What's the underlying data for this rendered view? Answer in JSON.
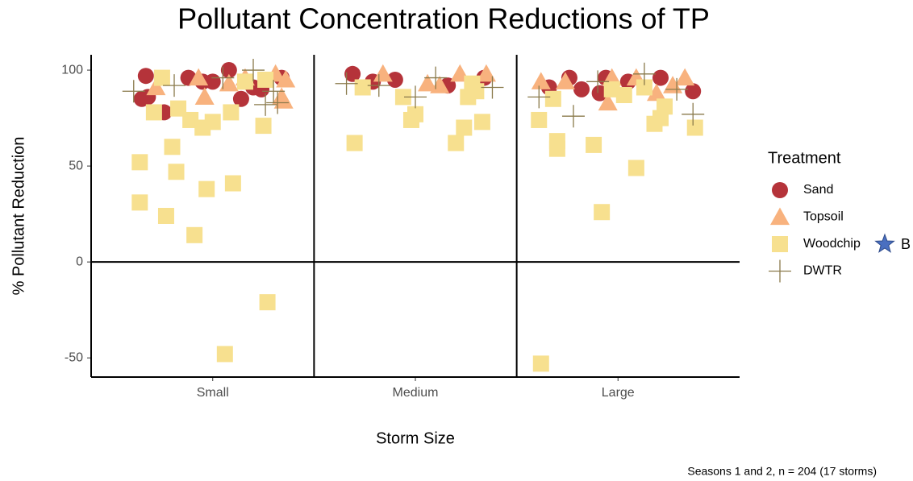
{
  "chart_data": {
    "type": "scatter",
    "title": "Pollutant Concentration Reductions of TP",
    "x_label": "Storm Size",
    "y_label": "% Pollutant Reduction",
    "legend_title": "Treatment",
    "annotation": "B",
    "annotation_color": "#4a6fc0",
    "caption": "Seasons 1 and 2, n = 204 (17 storms)",
    "xlim": [
      0.4,
      3.6
    ],
    "xticks": [
      {
        "value": 1,
        "label": "Small"
      },
      {
        "value": 2,
        "label": "Medium"
      },
      {
        "value": 3,
        "label": "Large"
      }
    ],
    "vlines": [
      1.5,
      2.5
    ],
    "hline": 0,
    "ylim": [
      -60,
      108
    ],
    "yticks": [
      -50,
      0,
      50,
      100
    ],
    "legend_position": "right",
    "series": [
      {
        "name": "Sand",
        "color": "#b5333a",
        "marker": "circle",
        "x": [
          0.67,
          0.65,
          0.68,
          0.76,
          0.88,
          0.95,
          1.08,
          1.14,
          1.2,
          1.24,
          1.34,
          1.0,
          1.69,
          1.79,
          1.9,
          2.16,
          2.34,
          2.66,
          2.76,
          2.82,
          2.91,
          2.94,
          3.05,
          3.21,
          3.37
        ],
        "values": [
          97,
          85,
          86,
          78,
          96,
          94,
          100,
          85,
          91,
          90,
          96,
          94,
          98,
          94,
          95,
          92,
          96,
          91,
          96,
          90,
          88,
          96,
          94,
          96,
          89
        ]
      },
      {
        "name": "Topsoil",
        "color": "#f8b27e",
        "marker": "triangle",
        "x": [
          0.72,
          0.93,
          0.96,
          1.08,
          1.16,
          1.31,
          1.36,
          1.34,
          1.35,
          1.84,
          2.06,
          2.12,
          2.22,
          2.35,
          2.62,
          2.74,
          2.95,
          2.97,
          3.09,
          3.19,
          3.33,
          3.27
        ],
        "values": [
          91,
          96,
          86,
          93,
          96,
          98,
          95,
          86,
          84,
          98,
          93,
          92,
          98,
          98,
          94,
          94,
          83,
          96,
          96,
          88,
          96,
          92
        ]
      },
      {
        "name": "Woodchip",
        "color": "#f7e08f",
        "marker": "square",
        "x": [
          0.64,
          0.64,
          0.77,
          0.8,
          0.82,
          0.91,
          0.97,
          1.1,
          1.06,
          1.27,
          1.25,
          0.71,
          0.89,
          0.95,
          1.0,
          1.09,
          0.83,
          0.75,
          1.26,
          1.16,
          1.7,
          1.74,
          1.94,
          1.98,
          2.0,
          2.2,
          2.24,
          2.33,
          2.26,
          2.28,
          2.3,
          2.62,
          2.61,
          2.68,
          2.7,
          2.7,
          2.88,
          2.92,
          3.09,
          3.18,
          3.21,
          3.23,
          3.38,
          2.97,
          3.03,
          3.13
        ],
        "values": [
          52,
          31,
          24,
          60,
          47,
          14,
          38,
          41,
          -48,
          -21,
          71,
          78,
          74,
          70,
          73,
          78,
          80,
          96,
          95,
          94,
          62,
          91,
          86,
          74,
          77,
          62,
          70,
          73,
          86,
          93,
          89,
          -53,
          74,
          85,
          63,
          59,
          61,
          26,
          49,
          72,
          75,
          81,
          70,
          90,
          87,
          91
        ]
      },
      {
        "name": "DWTR",
        "color": "#8a7a4b",
        "marker": "plus",
        "x": [
          0.61,
          0.81,
          1.05,
          1.2,
          1.3,
          1.32,
          1.26,
          1.66,
          1.82,
          2.0,
          2.1,
          2.38,
          2.61,
          2.78,
          2.9,
          3.13,
          3.29,
          3.37
        ],
        "values": [
          89,
          92,
          96,
          100,
          89,
          83,
          82,
          93,
          92,
          86,
          96,
          91,
          86,
          76,
          94,
          98,
          90,
          77
        ]
      }
    ]
  }
}
